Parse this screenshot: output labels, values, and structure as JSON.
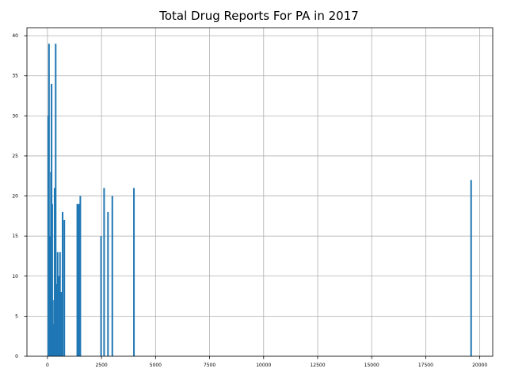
{
  "chart_data": {
    "type": "bar",
    "title": "Total Drug Reports For PA in 2017",
    "xlabel": "",
    "ylabel": "",
    "xlim": [
      -950,
      20600
    ],
    "ylim": [
      0,
      41
    ],
    "x_ticks": [
      0,
      2500,
      5000,
      7500,
      10000,
      12500,
      15000,
      17500,
      20000
    ],
    "x_tick_labels": [
      "0",
      "2500",
      "5000",
      "7500",
      "10000",
      "12500",
      "15000",
      "17500",
      "20000"
    ],
    "y_ticks": [
      0,
      5,
      10,
      15,
      20,
      25,
      30,
      35,
      40
    ],
    "y_tick_labels": [
      "0",
      "5",
      "10",
      "15",
      "20",
      "25",
      "30",
      "35",
      "40"
    ],
    "grid": true,
    "bar_color": "#1f77b4",
    "bars": [
      {
        "x": 40,
        "value": 30
      },
      {
        "x": 70,
        "value": 39
      },
      {
        "x": 90,
        "value": 15
      },
      {
        "x": 120,
        "value": 15
      },
      {
        "x": 160,
        "value": 23
      },
      {
        "x": 190,
        "value": 34
      },
      {
        "x": 220,
        "value": 19
      },
      {
        "x": 250,
        "value": 7
      },
      {
        "x": 280,
        "value": 4
      },
      {
        "x": 330,
        "value": 21
      },
      {
        "x": 380,
        "value": 39
      },
      {
        "x": 420,
        "value": 9
      },
      {
        "x": 470,
        "value": 13
      },
      {
        "x": 520,
        "value": 10
      },
      {
        "x": 580,
        "value": 13
      },
      {
        "x": 620,
        "value": 8
      },
      {
        "x": 660,
        "value": 8
      },
      {
        "x": 700,
        "value": 18
      },
      {
        "x": 780,
        "value": 17
      },
      {
        "x": 1380,
        "value": 19
      },
      {
        "x": 1450,
        "value": 19
      },
      {
        "x": 1520,
        "value": 20
      },
      {
        "x": 2480,
        "value": 15
      },
      {
        "x": 2620,
        "value": 21
      },
      {
        "x": 2800,
        "value": 18
      },
      {
        "x": 3000,
        "value": 20
      },
      {
        "x": 4000,
        "value": 21
      },
      {
        "x": 19600,
        "value": 22
      }
    ]
  }
}
